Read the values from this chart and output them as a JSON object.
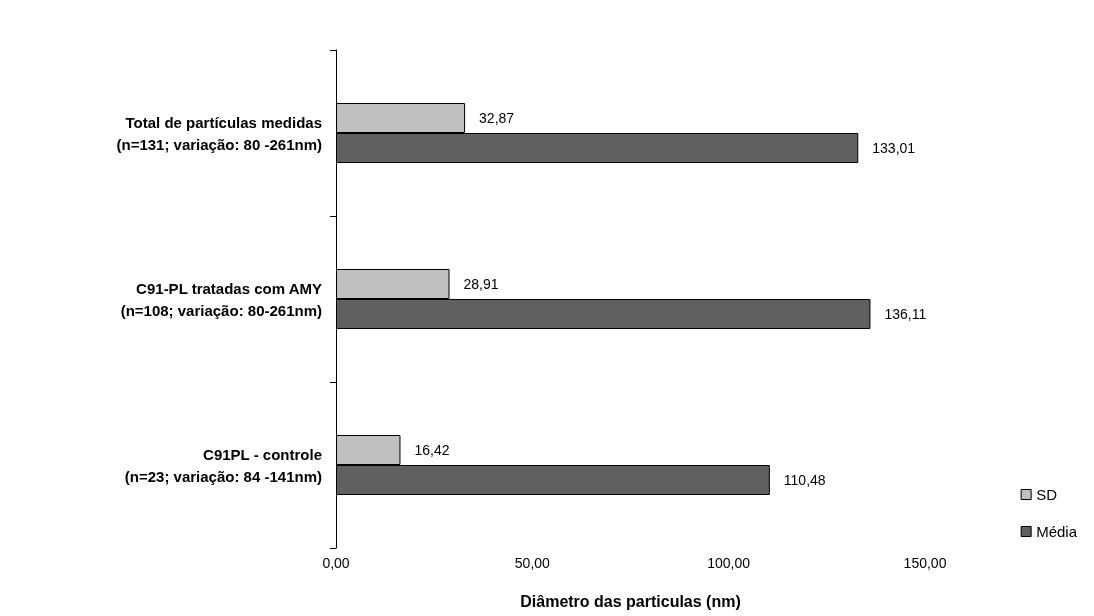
{
  "chart_data": {
    "type": "bar",
    "orientation": "horizontal",
    "xlabel": "Diâmetro das particulas (nm)",
    "categories": [
      "Total de partículas medidas\n(n=131; variação: 80 -261nm)",
      "C91-PL tratadas com AMY\n(n=108; variação: 80-261nm)",
      "C91PL - controle\n(n=23; variação: 84 -141nm)"
    ],
    "series": [
      {
        "name": "SD",
        "color": "#c0c0c0",
        "values": [
          32.87,
          28.91,
          16.42
        ],
        "value_labels": [
          "32,87",
          "28,91",
          "16,42"
        ]
      },
      {
        "name": "Média",
        "color": "#606060",
        "values": [
          133.01,
          136.11,
          110.48
        ],
        "value_labels": [
          "133,01",
          "136,11",
          "110,48"
        ]
      }
    ],
    "xlim": [
      0,
      150
    ],
    "xticks": [
      {
        "value": 0,
        "label": "0,00"
      },
      {
        "value": 50,
        "label": "50,00"
      },
      {
        "value": 100,
        "label": "100,00"
      },
      {
        "value": 150,
        "label": "150,00"
      }
    ],
    "grid": false,
    "legend": "bottom right"
  }
}
